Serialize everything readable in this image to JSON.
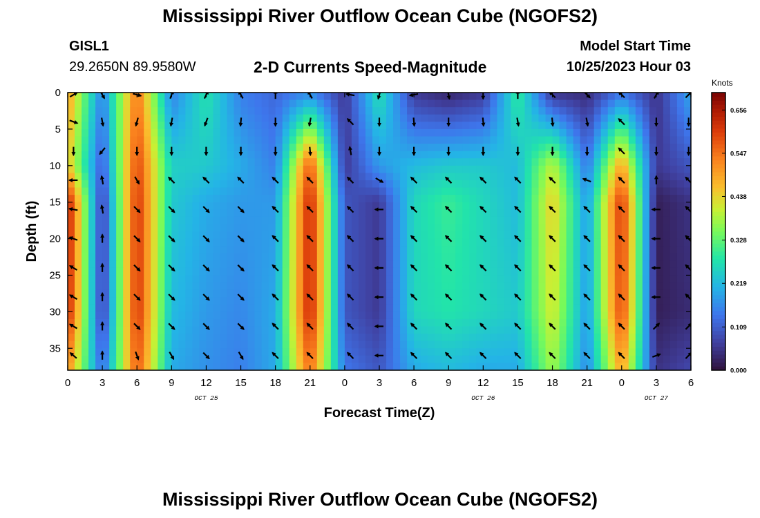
{
  "header": {
    "title": "Mississippi River Outflow Ocean Cube (NGOFS2)",
    "station_id": "GISL1",
    "station_coords": "29.2650N  89.9580W",
    "chart_title": "2-D Currents Speed-Magnitude",
    "start_label": "Model Start Time",
    "start_value": "10/25/2023 Hour 03"
  },
  "footer": {
    "title": "Mississippi River Outflow Ocean Cube (NGOFS2)"
  },
  "chart_data": {
    "type": "heatmap",
    "title": "2-D Currents Speed-Magnitude",
    "xlabel": "Forecast Time(Z)",
    "ylabel": "Depth (ft)",
    "xlim": [
      0,
      54
    ],
    "ylim": [
      38,
      0
    ],
    "x_ticks": [
      0,
      3,
      6,
      9,
      12,
      15,
      18,
      21,
      24,
      27,
      30,
      33,
      36,
      39,
      42,
      45,
      48,
      51,
      54
    ],
    "x_tick_labels": [
      "0",
      "3",
      "6",
      "9",
      "12",
      "15",
      "18",
      "21",
      "0",
      "3",
      "6",
      "9",
      "12",
      "15",
      "18",
      "21",
      "0",
      "3",
      "6"
    ],
    "y_ticks": [
      0,
      5,
      10,
      15,
      20,
      25,
      30,
      35
    ],
    "y_tick_labels": [
      "0",
      "5",
      "10",
      "15",
      "20",
      "25",
      "30",
      "35"
    ],
    "date_labels": [
      {
        "x": 12,
        "text": "OCT 25"
      },
      {
        "x": 36,
        "text": "OCT 26"
      },
      {
        "x": 51,
        "text": "OCT 27"
      }
    ],
    "colorbar": {
      "unit": "Knots",
      "min": 0.0,
      "max": 0.7,
      "ticks": [
        0.0,
        0.109,
        0.219,
        0.328,
        0.438,
        0.547,
        0.656
      ],
      "tick_labels": [
        "0.000",
        "0.109",
        "0.219",
        "0.328",
        "0.438",
        "0.547",
        "0.656"
      ]
    },
    "speed_time_hours": [
      0,
      3,
      6,
      9,
      12,
      15,
      18,
      21,
      24,
      27,
      30,
      33,
      36,
      39,
      42,
      45,
      48,
      51,
      54
    ],
    "speed_depths_ft": [
      0,
      10,
      15,
      30,
      38
    ],
    "speed_knots": [
      [
        0.5,
        0.15,
        0.55,
        0.15,
        0.28,
        0.15,
        0.12,
        0.16,
        0.06,
        0.28,
        0.06,
        0.03,
        0.06,
        0.3,
        0.05,
        0.04,
        0.14,
        0.05,
        0.2
      ],
      [
        0.46,
        0.1,
        0.6,
        0.25,
        0.24,
        0.2,
        0.15,
        0.58,
        0.06,
        0.18,
        0.22,
        0.24,
        0.24,
        0.22,
        0.4,
        0.14,
        0.5,
        0.06,
        0.1
      ],
      [
        0.65,
        0.06,
        0.62,
        0.24,
        0.2,
        0.18,
        0.18,
        0.64,
        0.1,
        0.06,
        0.26,
        0.3,
        0.26,
        0.22,
        0.45,
        0.18,
        0.62,
        0.02,
        0.05
      ],
      [
        0.64,
        0.06,
        0.62,
        0.22,
        0.18,
        0.16,
        0.2,
        0.64,
        0.1,
        0.06,
        0.26,
        0.28,
        0.26,
        0.24,
        0.42,
        0.18,
        0.6,
        0.02,
        0.04
      ],
      [
        0.52,
        0.12,
        0.58,
        0.2,
        0.17,
        0.15,
        0.2,
        0.56,
        0.14,
        0.1,
        0.2,
        0.22,
        0.2,
        0.2,
        0.38,
        0.16,
        0.5,
        0.05,
        0.08
      ]
    ],
    "vector_times_hours": [
      0.5,
      3,
      6,
      9,
      12,
      15,
      18,
      21,
      24.5,
      27,
      30,
      33,
      36,
      39,
      42,
      45,
      48,
      51,
      53.8
    ],
    "vector_depths_ft": [
      0.3,
      4,
      8,
      12,
      16,
      20,
      24,
      28,
      32,
      36
    ],
    "vector_directions_deg": [
      [
        30,
        300,
        345,
        70,
        65,
        120,
        90,
        120,
        170,
        255,
        190,
        280,
        270,
        90,
        135,
        315,
        135,
        60,
        45
      ],
      [
        340,
        280,
        255,
        260,
        250,
        265,
        270,
        260,
        135,
        270,
        275,
        270,
        275,
        280,
        275,
        280,
        135,
        270,
        270
      ],
      [
        270,
        230,
        270,
        270,
        270,
        270,
        270,
        275,
        100,
        270,
        270,
        270,
        270,
        270,
        270,
        270,
        135,
        270,
        270
      ],
      [
        180,
        100,
        300,
        135,
        135,
        135,
        135,
        135,
        135,
        330,
        135,
        135,
        135,
        135,
        135,
        160,
        135,
        90,
        135
      ],
      [
        170,
        100,
        315,
        315,
        315,
        315,
        135,
        135,
        135,
        180,
        135,
        135,
        135,
        135,
        135,
        135,
        135,
        180,
        135
      ],
      [
        160,
        90,
        315,
        315,
        315,
        315,
        135,
        135,
        135,
        180,
        135,
        135,
        135,
        135,
        135,
        135,
        135,
        180,
        135
      ],
      [
        150,
        90,
        315,
        315,
        315,
        315,
        135,
        135,
        135,
        180,
        135,
        135,
        135,
        135,
        135,
        135,
        135,
        180,
        135
      ],
      [
        150,
        90,
        315,
        315,
        315,
        315,
        135,
        135,
        135,
        180,
        135,
        135,
        135,
        135,
        135,
        135,
        135,
        180,
        135
      ],
      [
        150,
        90,
        315,
        315,
        315,
        315,
        135,
        135,
        135,
        180,
        135,
        135,
        135,
        135,
        135,
        135,
        135,
        45,
        45
      ],
      [
        140,
        90,
        290,
        300,
        315,
        300,
        135,
        135,
        135,
        180,
        135,
        135,
        135,
        135,
        135,
        135,
        135,
        20,
        45
      ]
    ],
    "legend": "right"
  }
}
